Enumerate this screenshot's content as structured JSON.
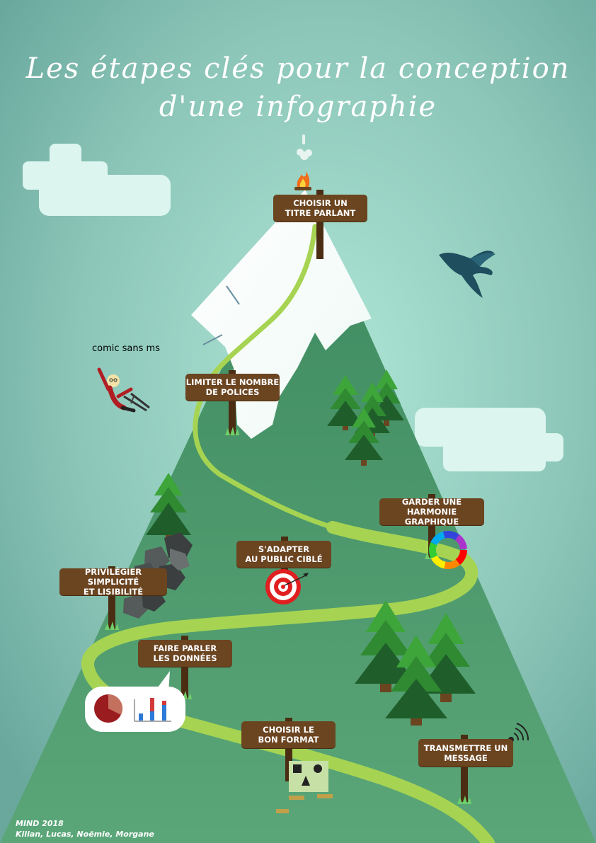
{
  "title": {
    "line1": "Les étapes clés pour la conception",
    "line2": "d'une infographie"
  },
  "caption": "comic sans ms",
  "signs": [
    {
      "id": "choisir-titre",
      "line1": "CHOISIR UN",
      "line2": "TITRE PARLANT"
    },
    {
      "id": "limiter-polices",
      "line1": "LIMITER LE NOMBRE",
      "line2": "DE POLICES"
    },
    {
      "id": "harmonie",
      "line1": "GARDER UNE",
      "line2": "HARMONIE GRAPHIQUE"
    },
    {
      "id": "public",
      "line1": "S'ADAPTER",
      "line2": "AU PUBLIC CIBLÉ"
    },
    {
      "id": "simplicite",
      "line1": "PRIVILÉGIER SIMPLICITÉ",
      "line2": "ET LISIBILITÉ"
    },
    {
      "id": "donnees",
      "line1": "FAIRE PARLER",
      "line2": "LES DONNÉES"
    },
    {
      "id": "format",
      "line1": "CHOISIR LE",
      "line2": "BON FORMAT"
    },
    {
      "id": "message",
      "line1": "TRANSMETTRE UN",
      "line2": "MESSAGE"
    }
  ],
  "credits": {
    "line1": "MIND 2018",
    "line2": "Kilian, Lucas, Noëmie, Morgane"
  },
  "colors": {
    "sky": "#7fb8ad",
    "mountain": "#4f9a6d",
    "snow": "#ffffff",
    "path": "#a6d452",
    "sign": "#6b4420",
    "cloud": "#dcf5ee"
  },
  "icons": [
    "campfire-icon",
    "bird-icon",
    "skier-icon",
    "color-wheel-icon",
    "target-icon",
    "pie-chart-icon",
    "bar-chart-icon",
    "shapes-box-icon",
    "signal-icon",
    "rocks-icon"
  ]
}
